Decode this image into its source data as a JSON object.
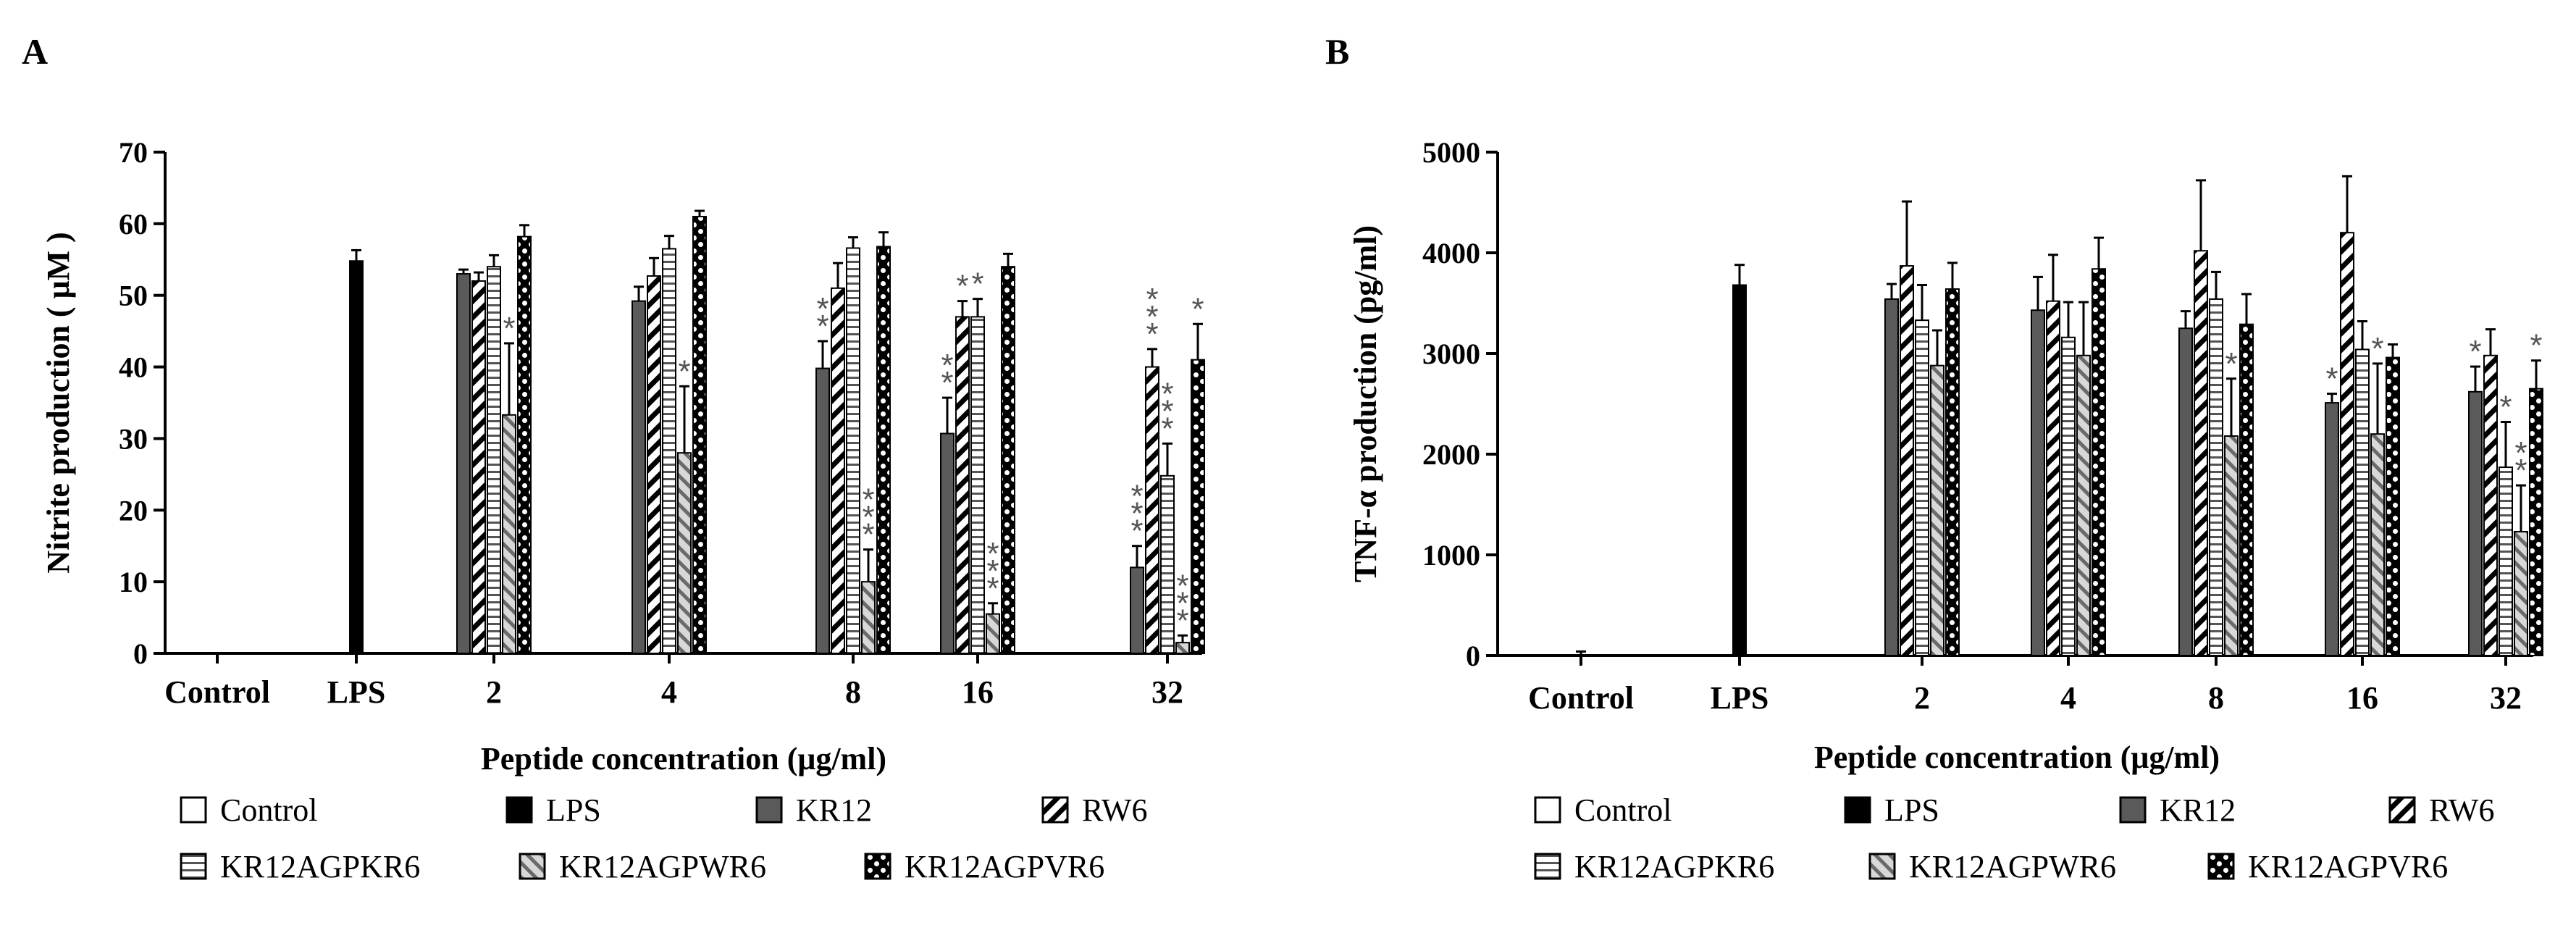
{
  "series": [
    {
      "name": "Control",
      "pattern": "white"
    },
    {
      "name": "LPS",
      "pattern": "black"
    },
    {
      "name": "KR12",
      "pattern": "gray"
    },
    {
      "name": "RW6",
      "pattern": "diag"
    },
    {
      "name": "KR12AGPKR6",
      "pattern": "hlines"
    },
    {
      "name": "KR12AGPWR6",
      "pattern": "graydiag"
    },
    {
      "name": "KR12AGPVR6",
      "pattern": "checker"
    }
  ],
  "chart_data": [
    {
      "panel": "A",
      "type": "bar",
      "ylabel": "Nitrite production ( μM )",
      "xlabel": "Peptide concentration (μg/ml)",
      "ylim": [
        0,
        70
      ],
      "yticks": [
        0,
        10,
        20,
        30,
        40,
        50,
        60,
        70
      ],
      "categories": [
        "Control",
        "LPS",
        "2",
        "4",
        "8",
        "16",
        "32"
      ],
      "groups": [
        {
          "category": "Control",
          "bars": [
            {
              "series": "Control",
              "value": 0,
              "error": 0
            }
          ]
        },
        {
          "category": "LPS",
          "bars": [
            {
              "series": "LPS",
              "value": 54.8,
              "error": 1.5
            }
          ]
        },
        {
          "category": "2",
          "bars": [
            {
              "series": "KR12",
              "value": 53,
              "error": 0.6,
              "sig": ""
            },
            {
              "series": "RW6",
              "value": 52,
              "error": 1.2,
              "sig": ""
            },
            {
              "series": "KR12AGPKR6",
              "value": 54,
              "error": 1.6,
              "sig": ""
            },
            {
              "series": "KR12AGPWR6",
              "value": 33.3,
              "error": 10,
              "sig": "*"
            },
            {
              "series": "KR12AGPVR6",
              "value": 58.2,
              "error": 1.6,
              "sig": ""
            }
          ]
        },
        {
          "category": "4",
          "bars": [
            {
              "series": "KR12",
              "value": 49.2,
              "error": 2,
              "sig": ""
            },
            {
              "series": "RW6",
              "value": 52.7,
              "error": 2.5,
              "sig": ""
            },
            {
              "series": "KR12AGPKR6",
              "value": 56.5,
              "error": 1.8,
              "sig": ""
            },
            {
              "series": "KR12AGPWR6",
              "value": 28,
              "error": 9.3,
              "sig": "*"
            },
            {
              "series": "KR12AGPVR6",
              "value": 61,
              "error": 0.8,
              "sig": ""
            }
          ]
        },
        {
          "category": "8",
          "bars": [
            {
              "series": "KR12",
              "value": 39.8,
              "error": 3.8,
              "sig": "**"
            },
            {
              "series": "RW6",
              "value": 51,
              "error": 3.5,
              "sig": ""
            },
            {
              "series": "KR12AGPKR6",
              "value": 56.6,
              "error": 1.5,
              "sig": ""
            },
            {
              "series": "KR12AGPWR6",
              "value": 10,
              "error": 4.5,
              "sig": "***"
            },
            {
              "series": "KR12AGPVR6",
              "value": 56.8,
              "error": 2,
              "sig": ""
            }
          ]
        },
        {
          "category": "16",
          "bars": [
            {
              "series": "KR12",
              "value": 30.7,
              "error": 5,
              "sig": "**"
            },
            {
              "series": "RW6",
              "value": 47,
              "error": 2.2,
              "sig": "*"
            },
            {
              "series": "KR12AGPKR6",
              "value": 47,
              "error": 2.5,
              "sig": "*"
            },
            {
              "series": "KR12AGPWR6",
              "value": 5.5,
              "error": 1.5,
              "sig": "***"
            },
            {
              "series": "KR12AGPVR6",
              "value": 54,
              "error": 1.8,
              "sig": ""
            }
          ]
        },
        {
          "category": "32",
          "bars": [
            {
              "series": "KR12",
              "value": 12,
              "error": 3,
              "sig": "***"
            },
            {
              "series": "RW6",
              "value": 40,
              "error": 2.5,
              "sig": "***"
            },
            {
              "series": "KR12AGPKR6",
              "value": 24.8,
              "error": 4.5,
              "sig": "***"
            },
            {
              "series": "KR12AGPWR6",
              "value": 1.5,
              "error": 1,
              "sig": "***"
            },
            {
              "series": "KR12AGPVR6",
              "value": 41,
              "error": 5,
              "sig": "*"
            }
          ]
        }
      ]
    },
    {
      "panel": "B",
      "type": "bar",
      "ylabel": "TNF-α production (pg/ml)",
      "xlabel": "Peptide concentration (μg/ml)",
      "ylim": [
        0,
        5000
      ],
      "yticks": [
        0,
        1000,
        2000,
        3000,
        4000,
        5000
      ],
      "categories": [
        "Control",
        "LPS",
        "2",
        "4",
        "8",
        "16",
        "32"
      ],
      "groups": [
        {
          "category": "Control",
          "bars": [
            {
              "series": "Control",
              "value": 0,
              "error": 40
            }
          ]
        },
        {
          "category": "LPS",
          "bars": [
            {
              "series": "LPS",
              "value": 3680,
              "error": 200
            }
          ]
        },
        {
          "category": "2",
          "bars": [
            {
              "series": "KR12",
              "value": 3540,
              "error": 150,
              "sig": ""
            },
            {
              "series": "RW6",
              "value": 3870,
              "error": 640,
              "sig": ""
            },
            {
              "series": "KR12AGPKR6",
              "value": 3330,
              "error": 350,
              "sig": ""
            },
            {
              "series": "KR12AGPWR6",
              "value": 2880,
              "error": 350,
              "sig": ""
            },
            {
              "series": "KR12AGPVR6",
              "value": 3640,
              "error": 260,
              "sig": ""
            }
          ]
        },
        {
          "category": "4",
          "bars": [
            {
              "series": "KR12",
              "value": 3430,
              "error": 330,
              "sig": ""
            },
            {
              "series": "RW6",
              "value": 3520,
              "error": 460,
              "sig": ""
            },
            {
              "series": "KR12AGPKR6",
              "value": 3160,
              "error": 350,
              "sig": ""
            },
            {
              "series": "KR12AGPWR6",
              "value": 2980,
              "error": 530,
              "sig": ""
            },
            {
              "series": "KR12AGPVR6",
              "value": 3840,
              "error": 310,
              "sig": ""
            }
          ]
        },
        {
          "category": "8",
          "bars": [
            {
              "series": "KR12",
              "value": 3250,
              "error": 170,
              "sig": ""
            },
            {
              "series": "RW6",
              "value": 4020,
              "error": 700,
              "sig": ""
            },
            {
              "series": "KR12AGPKR6",
              "value": 3540,
              "error": 270,
              "sig": ""
            },
            {
              "series": "KR12AGPWR6",
              "value": 2180,
              "error": 570,
              "sig": "*"
            },
            {
              "series": "KR12AGPVR6",
              "value": 3290,
              "error": 300,
              "sig": ""
            }
          ]
        },
        {
          "category": "16",
          "bars": [
            {
              "series": "KR12",
              "value": 2510,
              "error": 90,
              "sig": "*"
            },
            {
              "series": "RW6",
              "value": 4200,
              "error": 560,
              "sig": ""
            },
            {
              "series": "KR12AGPKR6",
              "value": 3040,
              "error": 280,
              "sig": ""
            },
            {
              "series": "KR12AGPWR6",
              "value": 2200,
              "error": 700,
              "sig": "*"
            },
            {
              "series": "KR12AGPVR6",
              "value": 2960,
              "error": 130,
              "sig": ""
            }
          ]
        },
        {
          "category": "32",
          "bars": [
            {
              "series": "KR12",
              "value": 2620,
              "error": 250,
              "sig": "*"
            },
            {
              "series": "RW6",
              "value": 2980,
              "error": 260,
              "sig": ""
            },
            {
              "series": "KR12AGPKR6",
              "value": 1870,
              "error": 450,
              "sig": "*"
            },
            {
              "series": "KR12AGPWR6",
              "value": 1230,
              "error": 460,
              "sig": "**"
            },
            {
              "series": "KR12AGPVR6",
              "value": 2650,
              "error": 280,
              "sig": "*"
            }
          ]
        }
      ]
    }
  ]
}
